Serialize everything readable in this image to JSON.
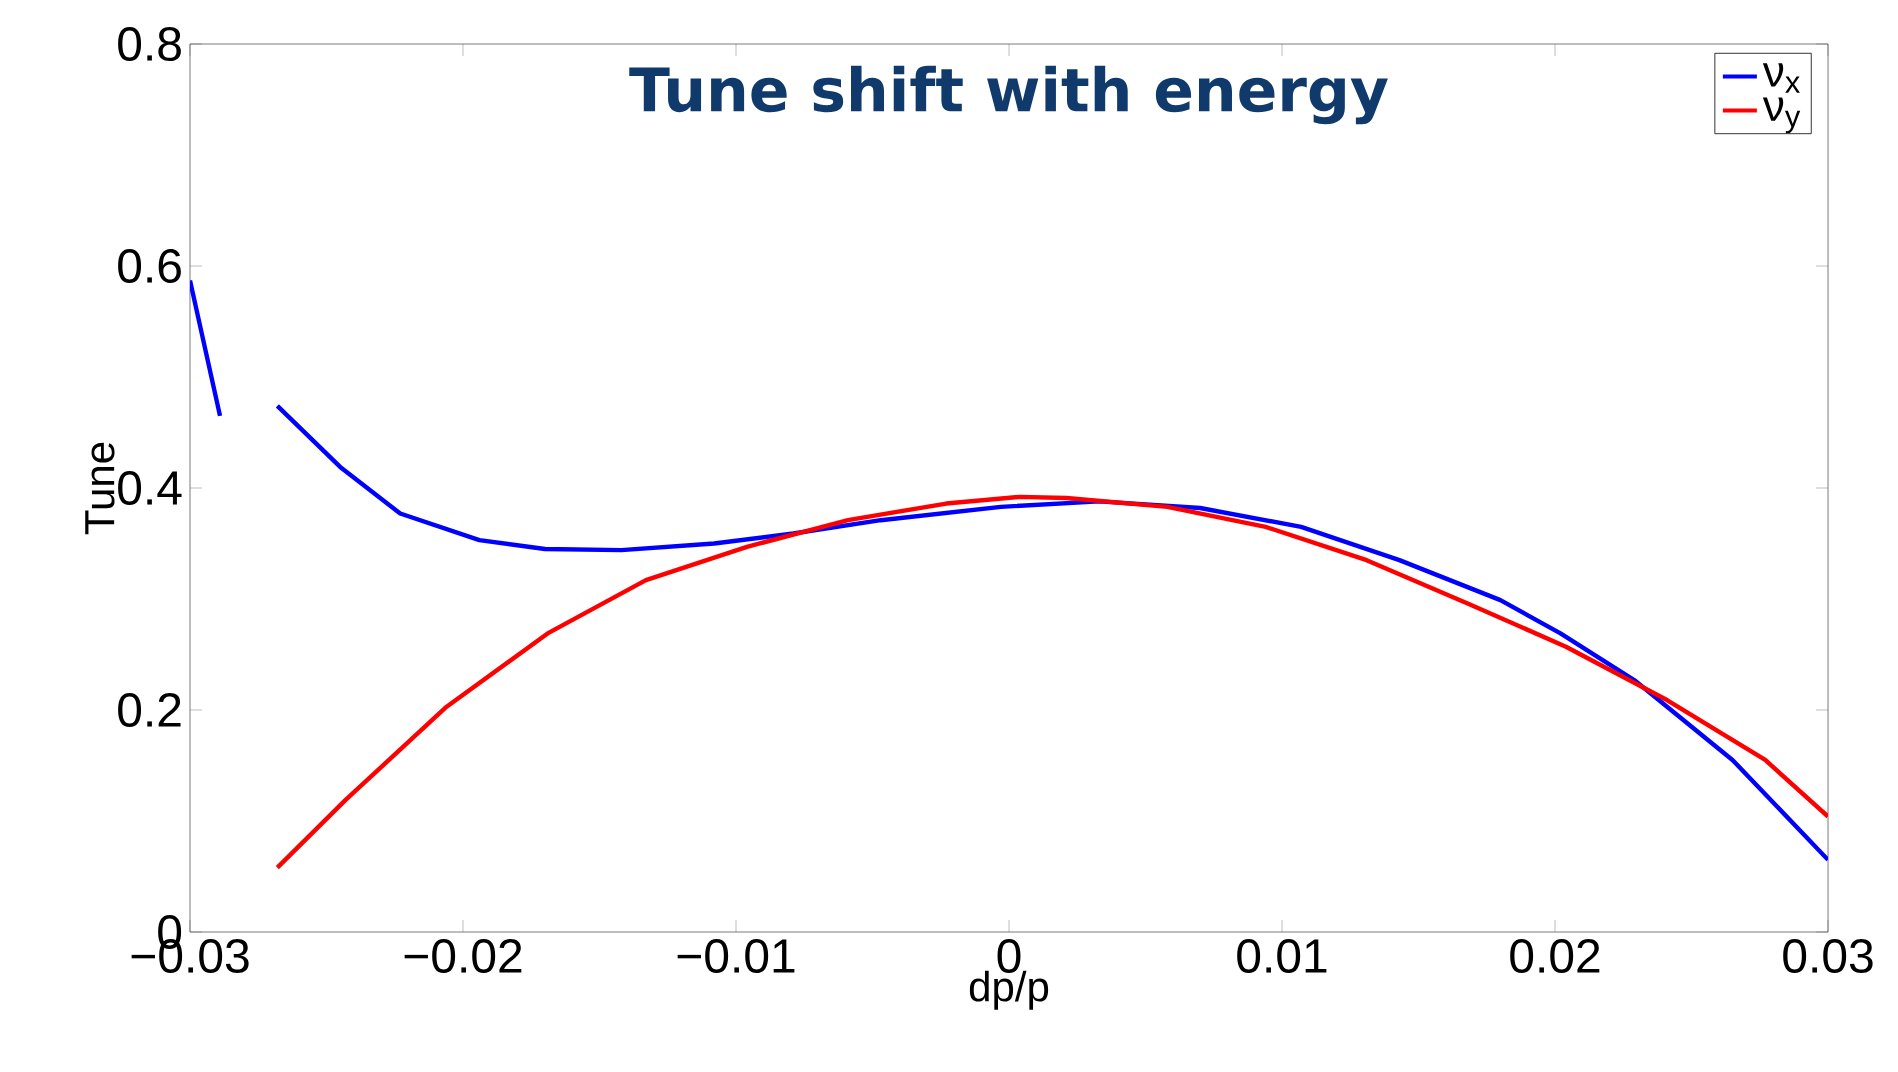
{
  "chart_data": {
    "type": "line",
    "title": "Tune shift with energy",
    "xlabel": "dp/p",
    "ylabel": "Tune",
    "xlim": [
      -0.03,
      0.03
    ],
    "xticks": [
      {
        "value": -0.03,
        "label": "−0.03"
      },
      {
        "value": -0.02,
        "label": "−0.02"
      },
      {
        "value": -0.01,
        "label": "−0.01"
      },
      0,
      0.01,
      0.02,
      0.03
    ],
    "ylim": [
      0,
      0.8
    ],
    "yticks": [
      0,
      0.2,
      0.4,
      0.6,
      0.8
    ],
    "legend": "top right",
    "marker": "none",
    "line_style": "solid",
    "series": [
      {
        "name": "ν$_{x}$",
        "color": "#0000ff",
        "x": [
          -0.03,
          -0.0289,
          -0.0278,
          -0.0268,
          -0.0245,
          -0.0223,
          -0.0194,
          -0.017,
          -0.0142,
          -0.0108,
          -0.0079,
          -0.0047,
          -0.0003,
          0.0033,
          0.007,
          0.0107,
          0.0143,
          0.018,
          0.0202,
          0.0229,
          0.0265,
          0.03
        ],
        "values": [
          0.587,
          0.465,
          null,
          0.474,
          0.419,
          0.377,
          0.353,
          0.345,
          0.344,
          0.35,
          0.359,
          0.371,
          0.383,
          0.388,
          0.382,
          0.365,
          0.335,
          0.299,
          0.269,
          0.227,
          0.155,
          0.065
        ]
      },
      {
        "name": "ν$_{y}$",
        "color": "#ff0000",
        "x": [
          -0.0268,
          -0.0243,
          -0.0206,
          -0.0169,
          -0.0133,
          -0.0096,
          -0.0059,
          -0.0023,
          0.0004,
          0.0021,
          0.0058,
          0.0094,
          0.0131,
          0.0168,
          0.0204,
          0.0241,
          0.0277,
          0.03
        ],
        "values": [
          0.058,
          0.119,
          0.203,
          0.269,
          0.317,
          0.347,
          0.371,
          0.386,
          0.392,
          0.391,
          0.383,
          0.365,
          0.335,
          0.296,
          0.257,
          0.209,
          0.155,
          0.104
        ]
      }
    ]
  }
}
